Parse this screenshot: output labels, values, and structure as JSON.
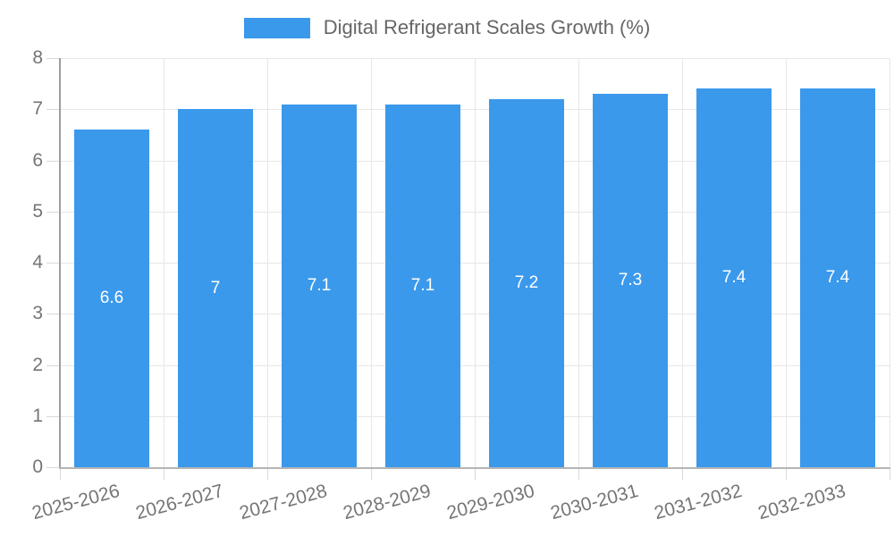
{
  "chart_data": {
    "type": "bar",
    "title": "",
    "xlabel": "",
    "ylabel": "",
    "legend": {
      "label": "Digital Refrigerant Scales Growth (%)",
      "position": "top"
    },
    "categories": [
      "2025-2026",
      "2026-2027",
      "2027-2028",
      "2028-2029",
      "2029-2030",
      "2030-2031",
      "2031-2032",
      "2032-2033"
    ],
    "series": [
      {
        "name": "Digital Refrigerant Scales Growth (%)",
        "values": [
          6.6,
          7,
          7.1,
          7.1,
          7.2,
          7.3,
          7.4,
          7.4
        ]
      }
    ],
    "value_labels_inside_bars": true,
    "ylim": [
      0,
      8
    ],
    "yticks": [
      0,
      1,
      2,
      3,
      4,
      5,
      6,
      7,
      8
    ],
    "grid": true,
    "x_label_rotation_deg": -15,
    "colors": {
      "bar": "#3b99ec",
      "value_label": "#ffffff",
      "axis_text": "#757575",
      "legend_text": "#666666",
      "grid": "#e7e7e7",
      "tick": "#d9d9d9",
      "y_axis_line": "#9e9e9e",
      "x_axis_line": "#b5b5b5",
      "background": "#ffffff"
    }
  }
}
